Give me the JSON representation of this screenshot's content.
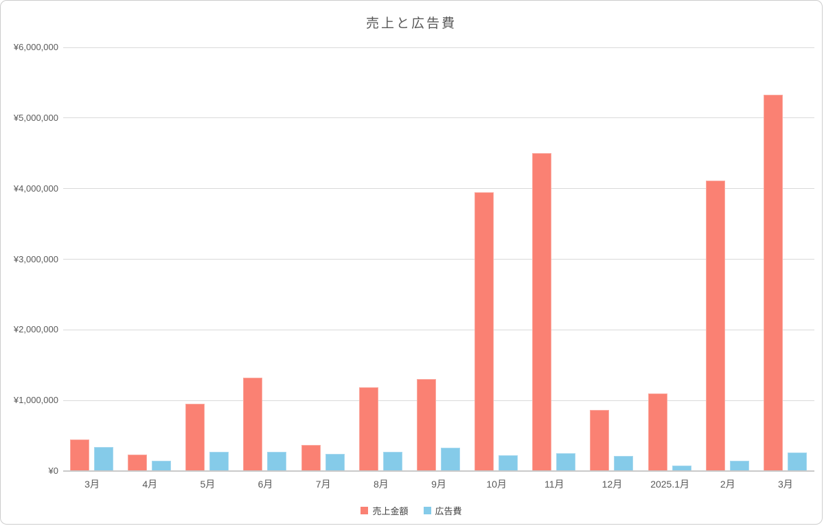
{
  "chart_data": {
    "type": "bar",
    "title": "売上と広告費",
    "categories": [
      "3月",
      "4月",
      "5月",
      "6月",
      "7月",
      "8月",
      "9月",
      "10月",
      "11月",
      "12月",
      "2025.1月",
      "2月",
      "3月"
    ],
    "series": [
      {
        "name": "売上金額",
        "color": "#fa8173",
        "border_color": "#fba99f",
        "values": [
          450000,
          230000,
          950000,
          1320000,
          370000,
          1190000,
          1300000,
          3950000,
          4500000,
          870000,
          1100000,
          4110000,
          5330000
        ]
      },
      {
        "name": "広告費",
        "color": "#85cbe9",
        "border_color": "#a6d8ef",
        "values": [
          340000,
          150000,
          270000,
          270000,
          240000,
          270000,
          330000,
          220000,
          250000,
          210000,
          80000,
          150000,
          260000
        ]
      }
    ],
    "xlabel": "",
    "ylabel": "",
    "ylim": [
      0,
      6000000
    ],
    "y_ticks": [
      {
        "value": 0,
        "label": "¥0"
      },
      {
        "value": 1000000,
        "label": "¥1,000,000"
      },
      {
        "value": 2000000,
        "label": "¥2,000,000"
      },
      {
        "value": 3000000,
        "label": "¥3,000,000"
      },
      {
        "value": 4000000,
        "label": "¥4,000,000"
      },
      {
        "value": 5000000,
        "label": "¥5,000,000"
      },
      {
        "value": 6000000,
        "label": "¥6,000,000"
      }
    ],
    "grid": true,
    "legend_position": "bottom"
  },
  "colors": {
    "grid": "#d9d9d9",
    "baseline": "#c9c9c9",
    "text": "#595959",
    "legend_text": "#404040",
    "background": "#ffffff"
  }
}
